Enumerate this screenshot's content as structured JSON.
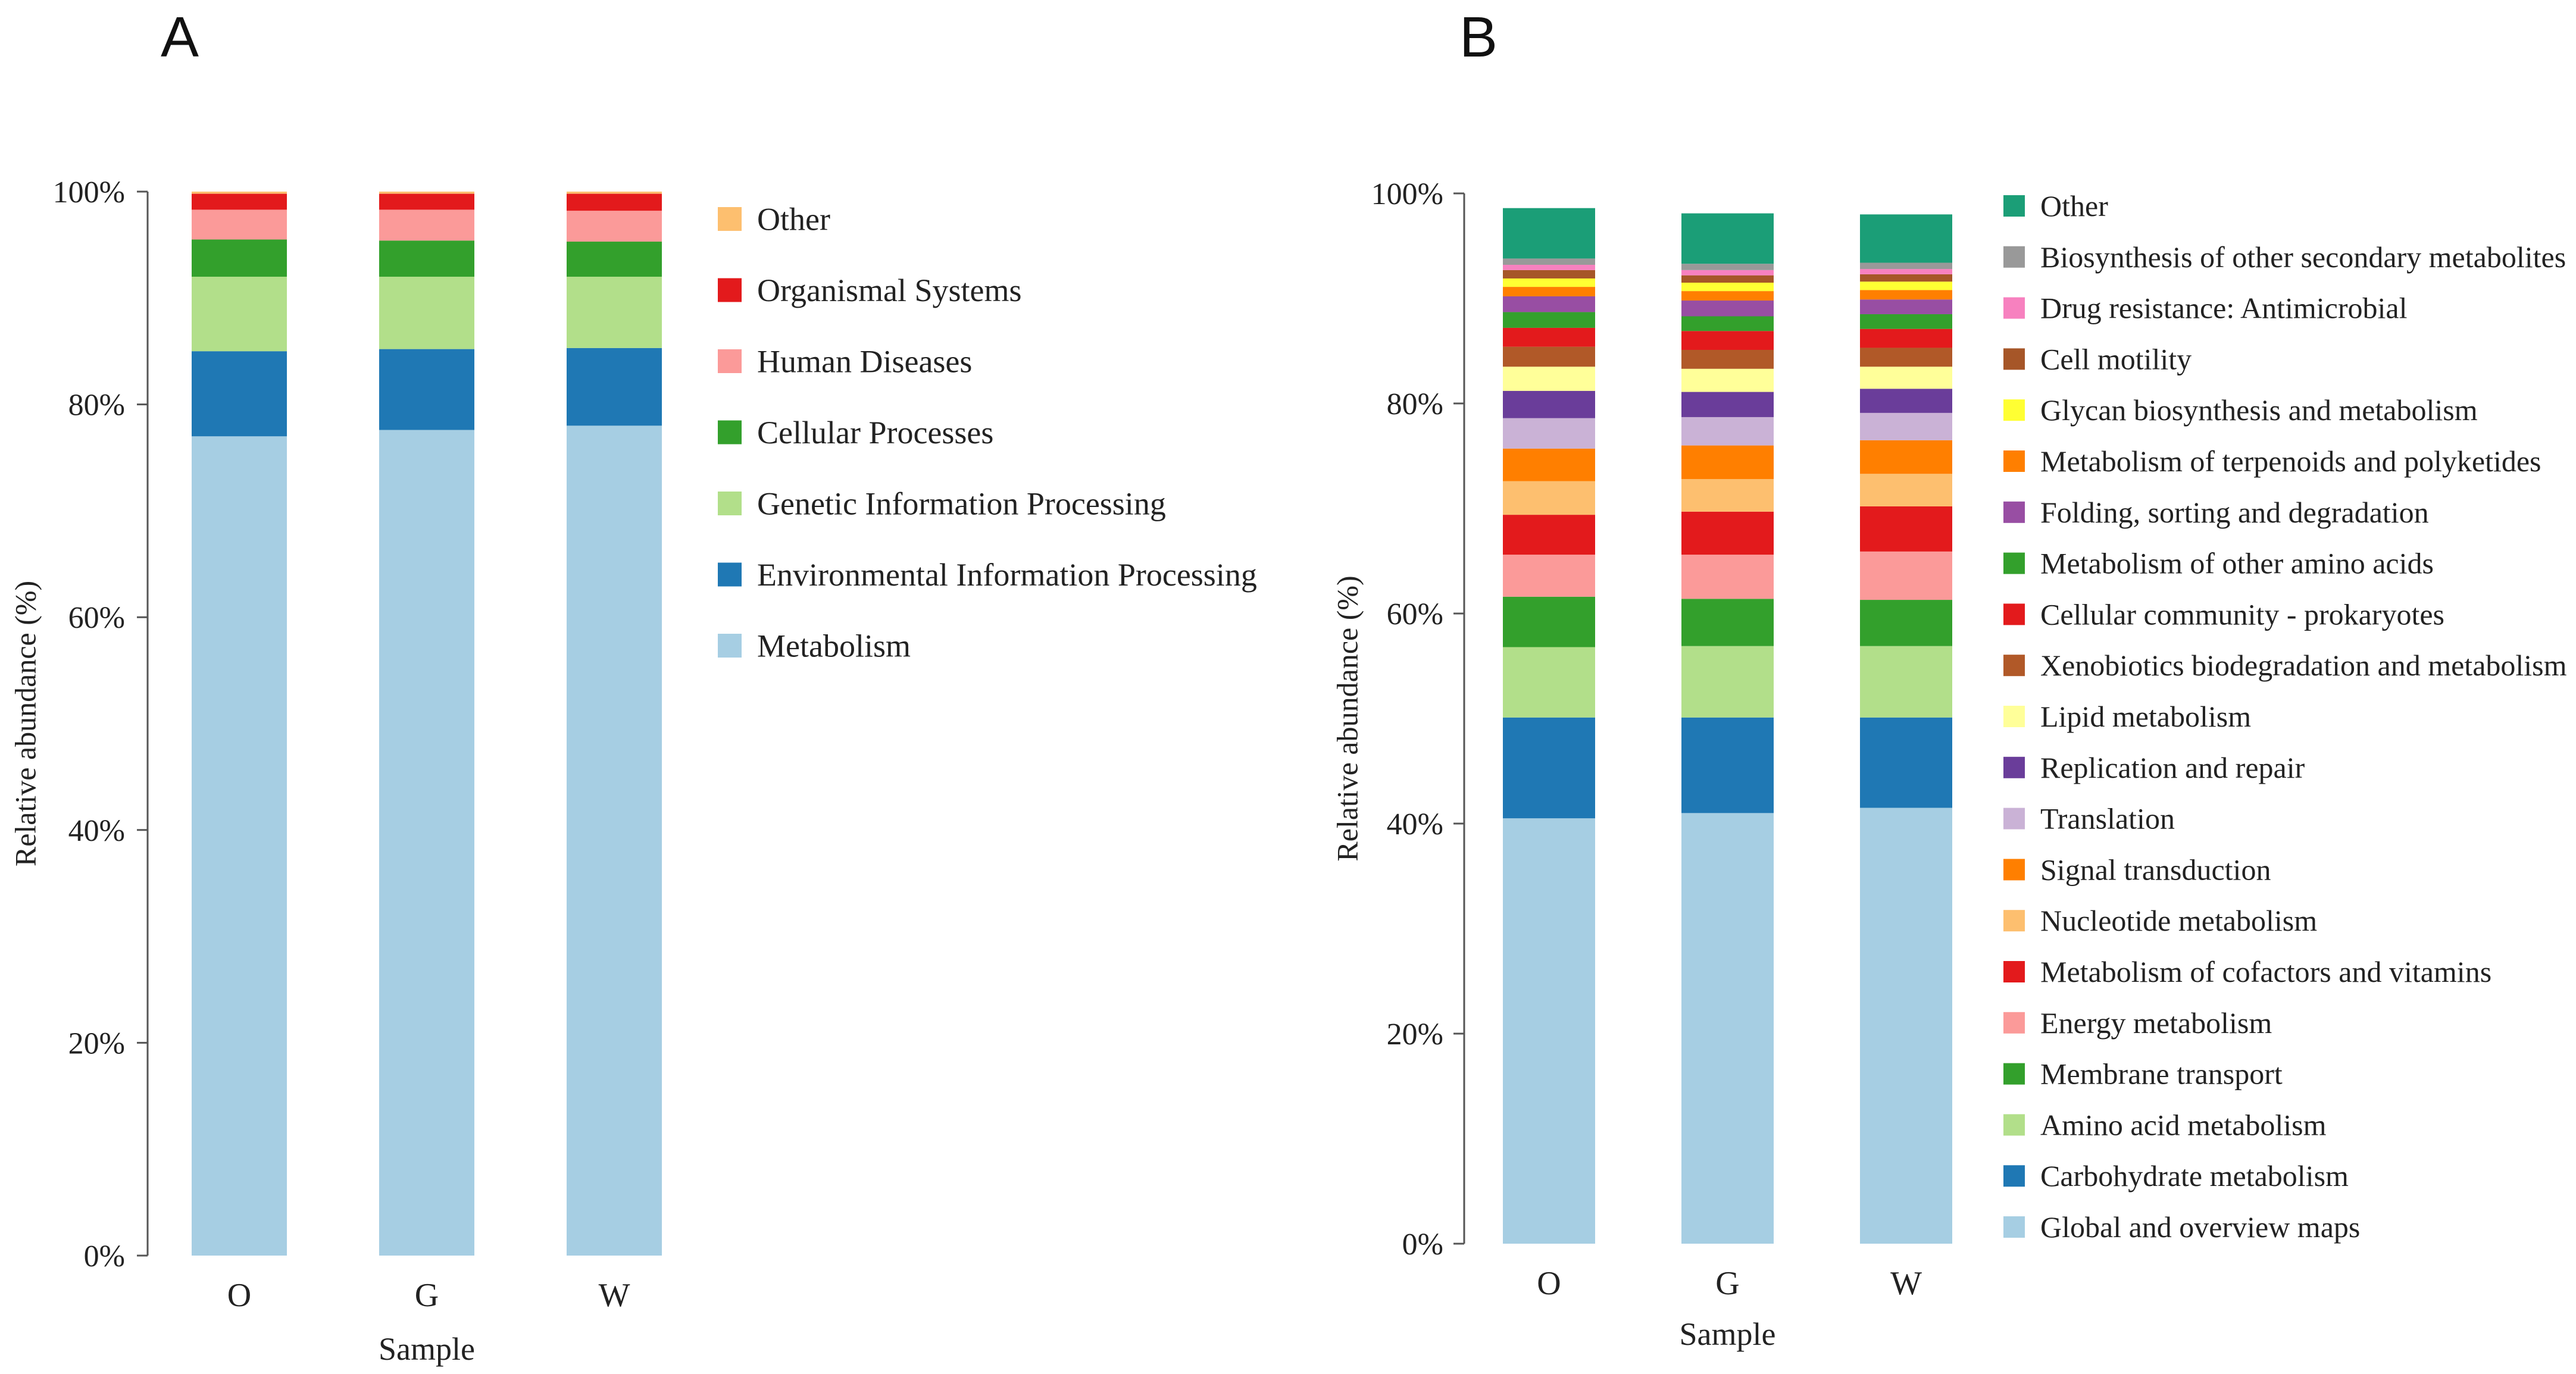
{
  "chart_data": [
    {
      "panel_label": "A",
      "type": "bar",
      "stacked": true,
      "categories": [
        "O",
        "G",
        "W"
      ],
      "xlabel": "Sample",
      "ylabel": "Relative abundance (%)",
      "y_ticks": [
        "0%",
        "20%",
        "40%",
        "60%",
        "80%",
        "100%"
      ],
      "ylim": [
        0,
        100
      ],
      "legend_order": [
        "Other",
        "Organismal Systems",
        "Human Diseases",
        "Cellular Processes",
        "Genetic Information Processing",
        "Environmental Information Processing",
        "Metabolism"
      ],
      "series": [
        {
          "name": "Metabolism",
          "color": "#a6cee3",
          "values": [
            77.0,
            77.6,
            78.0
          ]
        },
        {
          "name": "Environmental Information Processing",
          "color": "#1f78b4",
          "values": [
            8.0,
            7.6,
            7.3
          ]
        },
        {
          "name": "Genetic Information Processing",
          "color": "#b2df8a",
          "values": [
            7.0,
            6.8,
            6.7
          ]
        },
        {
          "name": "Cellular Processes",
          "color": "#33a02c",
          "values": [
            3.5,
            3.4,
            3.3
          ]
        },
        {
          "name": "Human Diseases",
          "color": "#fb9a99",
          "values": [
            2.8,
            2.9,
            2.9
          ]
        },
        {
          "name": "Organismal Systems",
          "color": "#e31a1c",
          "values": [
            1.5,
            1.5,
            1.6
          ]
        },
        {
          "name": "Other",
          "color": "#fdbf6f",
          "values": [
            0.2,
            0.2,
            0.2
          ]
        }
      ]
    },
    {
      "panel_label": "B",
      "type": "bar",
      "stacked": true,
      "categories": [
        "O",
        "G",
        "W"
      ],
      "xlabel": "Sample",
      "ylabel": "Relative abundance (%)",
      "y_ticks": [
        "0%",
        "20%",
        "40%",
        "60%",
        "80%",
        "100%"
      ],
      "ylim": [
        0,
        100
      ],
      "legend_order": [
        "Other",
        "Biosynthesis of other secondary metabolites",
        "Drug resistance: Antimicrobial",
        "Cell motility",
        "Glycan biosynthesis and metabolism",
        "Metabolism of terpenoids and polyketides",
        "Folding, sorting and degradation",
        "Metabolism of other amino acids",
        "Cellular community - prokaryotes",
        "Xenobiotics biodegradation and metabolism",
        "Lipid metabolism",
        "Replication and repair",
        "Translation",
        "Signal transduction",
        "Nucleotide metabolism",
        "Metabolism of cofactors and vitamins",
        "Energy metabolism",
        "Membrane transport",
        "Amino acid metabolism",
        "Carbohydrate metabolism",
        "Global and overview maps"
      ],
      "series": [
        {
          "name": "Global and overview maps",
          "color": "#a6cee3",
          "values": [
            40.5,
            41.0,
            41.5
          ]
        },
        {
          "name": "Carbohydrate metabolism",
          "color": "#1f78b4",
          "values": [
            9.6,
            9.1,
            8.6
          ]
        },
        {
          "name": "Amino acid metabolism",
          "color": "#b2df8a",
          "values": [
            6.7,
            6.8,
            6.8
          ]
        },
        {
          "name": "Membrane transport",
          "color": "#33a02c",
          "values": [
            4.8,
            4.5,
            4.4
          ]
        },
        {
          "name": "Energy metabolism",
          "color": "#fb9a99",
          "values": [
            4.0,
            4.2,
            4.6
          ]
        },
        {
          "name": "Metabolism of cofactors and vitamins",
          "color": "#e31a1c",
          "values": [
            3.8,
            4.1,
            4.3
          ]
        },
        {
          "name": "Nucleotide metabolism",
          "color": "#fdbf6f",
          "values": [
            3.2,
            3.1,
            3.1
          ]
        },
        {
          "name": "Signal transduction",
          "color": "#ff7f00",
          "values": [
            3.1,
            3.2,
            3.2
          ]
        },
        {
          "name": "Translation",
          "color": "#cab2d6",
          "values": [
            2.9,
            2.7,
            2.6
          ]
        },
        {
          "name": "Replication and repair",
          "color": "#6a3d9a",
          "values": [
            2.6,
            2.4,
            2.3
          ]
        },
        {
          "name": "Lipid metabolism",
          "color": "#ffff99",
          "values": [
            2.3,
            2.2,
            2.1
          ]
        },
        {
          "name": "Xenobiotics biodegradation and metabolism",
          "color": "#b15928",
          "values": [
            1.9,
            1.8,
            1.8
          ]
        },
        {
          "name": "Cellular community - prokaryotes",
          "color": "#e31a1c",
          "values": [
            1.8,
            1.8,
            1.8
          ]
        },
        {
          "name": "Metabolism of other amino acids",
          "color": "#33a02c",
          "values": [
            1.5,
            1.4,
            1.4
          ]
        },
        {
          "name": "Folding, sorting and degradation",
          "color": "#984ea3",
          "values": [
            1.5,
            1.5,
            1.4
          ]
        },
        {
          "name": "Metabolism of terpenoids and polyketides",
          "color": "#ff7f00",
          "values": [
            0.9,
            0.9,
            0.9
          ]
        },
        {
          "name": "Glycan biosynthesis and metabolism",
          "color": "#ffff33",
          "values": [
            0.8,
            0.8,
            0.8
          ]
        },
        {
          "name": "Cell motility",
          "color": "#a65628",
          "values": [
            0.8,
            0.7,
            0.7
          ]
        },
        {
          "name": "Drug resistance: Antimicrobial",
          "color": "#f781bf",
          "values": [
            0.5,
            0.5,
            0.5
          ]
        },
        {
          "name": "Biosynthesis of other secondary metabolites",
          "color": "#999999",
          "values": [
            0.6,
            0.6,
            0.6
          ]
        },
        {
          "name": "Other",
          "color": "#1b9e77",
          "values": [
            4.8,
            4.8,
            4.6
          ]
        }
      ]
    }
  ]
}
